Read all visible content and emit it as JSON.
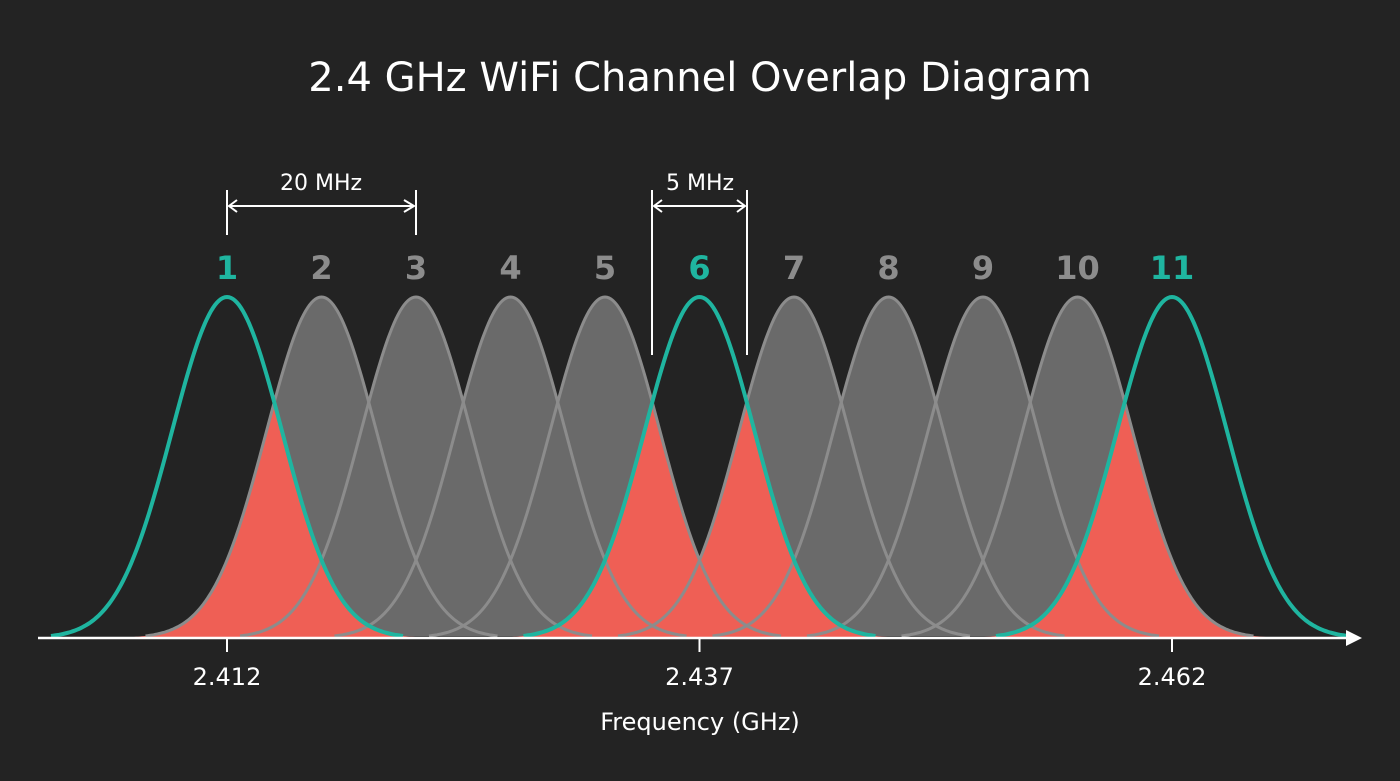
{
  "title": "2.4 GHz WiFi Channel Overlap Diagram",
  "channels": [
    {
      "label": "1",
      "highlighted": true
    },
    {
      "label": "2",
      "highlighted": false
    },
    {
      "label": "3",
      "highlighted": false
    },
    {
      "label": "4",
      "highlighted": false
    },
    {
      "label": "5",
      "highlighted": false
    },
    {
      "label": "6",
      "highlighted": true
    },
    {
      "label": "7",
      "highlighted": false
    },
    {
      "label": "8",
      "highlighted": false
    },
    {
      "label": "9",
      "highlighted": false
    },
    {
      "label": "10",
      "highlighted": false
    },
    {
      "label": "11",
      "highlighted": true
    }
  ],
  "annotations": {
    "channel_width": "20 MHz",
    "channel_spacing": "5 MHz"
  },
  "x_axis": {
    "ticks": [
      {
        "channel": 0,
        "label": "2.412"
      },
      {
        "channel": 5,
        "label": "2.437"
      },
      {
        "channel": 10,
        "label": "2.462"
      }
    ],
    "label": "Frequency (GHz)"
  }
}
